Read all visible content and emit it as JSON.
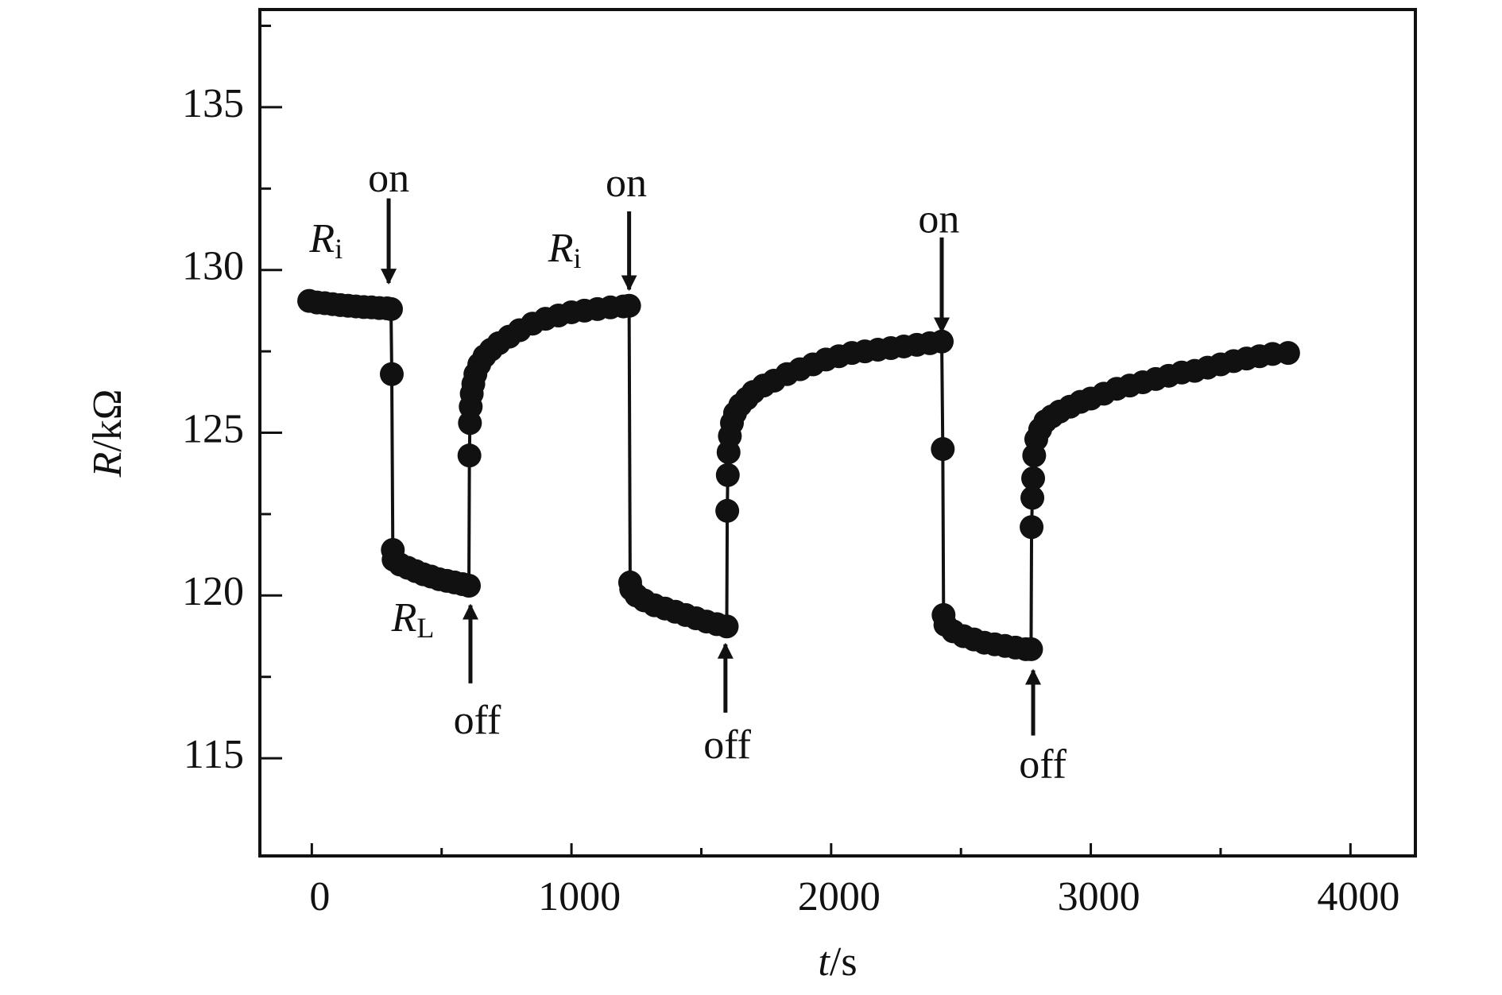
{
  "chart_data": {
    "type": "scatter",
    "xlabel_var": "t",
    "xlabel_unit": "/s",
    "ylabel_var": "R",
    "ylabel_unit": "/kΩ",
    "xlim": [
      -200,
      4250
    ],
    "xticks": [
      0,
      1000,
      2000,
      3000,
      4000
    ],
    "xminor_ticks": [
      500,
      1500,
      2500,
      3500
    ],
    "ylim": [
      112,
      138
    ],
    "yticks": [
      115,
      120,
      125,
      130,
      135
    ],
    "yminor_ticks": [
      117.5,
      122.5,
      127.5,
      132.5,
      137.5
    ],
    "grid": false,
    "series": [
      {
        "color": "#111111",
        "x": [
          -10,
          20,
          50,
          80,
          110,
          140,
          170,
          200,
          230,
          260,
          290,
          305,
          308,
          312,
          315,
          340,
          370,
          400,
          430,
          460,
          490,
          520,
          550,
          580,
          605,
          607,
          609,
          612,
          616,
          622,
          630,
          645,
          665,
          690,
          720,
          760,
          800,
          850,
          900,
          950,
          1000,
          1050,
          1100,
          1150,
          1200,
          1222,
          1226,
          1230,
          1250,
          1280,
          1320,
          1360,
          1400,
          1440,
          1480,
          1520,
          1560,
          1598,
          1600,
          1602,
          1605,
          1610,
          1618,
          1630,
          1650,
          1675,
          1700,
          1740,
          1780,
          1830,
          1880,
          1930,
          1980,
          2030,
          2080,
          2130,
          2180,
          2230,
          2280,
          2330,
          2380,
          2426,
          2430,
          2433,
          2440,
          2470,
          2510,
          2550,
          2590,
          2630,
          2670,
          2710,
          2750,
          2770,
          2772,
          2775,
          2778,
          2782,
          2790,
          2805,
          2825,
          2850,
          2880,
          2920,
          2960,
          3000,
          3050,
          3100,
          3150,
          3200,
          3250,
          3300,
          3350,
          3400,
          3450,
          3500,
          3550,
          3600,
          3650,
          3700,
          3760
        ],
        "values": [
          129.05,
          129.0,
          128.98,
          128.95,
          128.92,
          128.9,
          128.88,
          128.86,
          128.85,
          128.83,
          128.82,
          128.8,
          126.8,
          121.4,
          121.1,
          120.95,
          120.85,
          120.75,
          120.65,
          120.58,
          120.5,
          120.45,
          120.4,
          120.35,
          120.3,
          124.3,
          125.3,
          125.8,
          126.2,
          126.5,
          126.8,
          127.1,
          127.35,
          127.55,
          127.75,
          127.95,
          128.15,
          128.35,
          128.5,
          128.6,
          128.7,
          128.75,
          128.8,
          128.85,
          128.88,
          128.9,
          120.4,
          120.2,
          120.0,
          119.85,
          119.7,
          119.6,
          119.5,
          119.4,
          119.3,
          119.2,
          119.12,
          119.05,
          122.6,
          123.7,
          124.4,
          124.9,
          125.3,
          125.6,
          125.85,
          126.05,
          126.25,
          126.45,
          126.6,
          126.8,
          126.95,
          127.1,
          127.25,
          127.35,
          127.45,
          127.5,
          127.55,
          127.6,
          127.65,
          127.7,
          127.75,
          127.8,
          124.5,
          119.4,
          119.1,
          118.9,
          118.75,
          118.65,
          118.55,
          118.5,
          118.45,
          118.4,
          118.35,
          118.35,
          122.1,
          123.0,
          123.6,
          124.3,
          124.8,
          125.1,
          125.35,
          125.5,
          125.65,
          125.8,
          125.95,
          126.05,
          126.2,
          126.35,
          126.45,
          126.55,
          126.65,
          126.75,
          126.85,
          126.9,
          127.0,
          127.1,
          127.2,
          127.28,
          127.35,
          127.42,
          127.45
        ]
      }
    ],
    "annotations": [
      {
        "text": "on"
      },
      {
        "text": "on"
      },
      {
        "text": "on"
      },
      {
        "text": "off"
      },
      {
        "text": "off"
      },
      {
        "text": "off"
      },
      {
        "text": "R",
        "subscript": "i"
      },
      {
        "text": "R",
        "subscript": "i"
      },
      {
        "text": "R",
        "subscript": "L"
      }
    ]
  }
}
